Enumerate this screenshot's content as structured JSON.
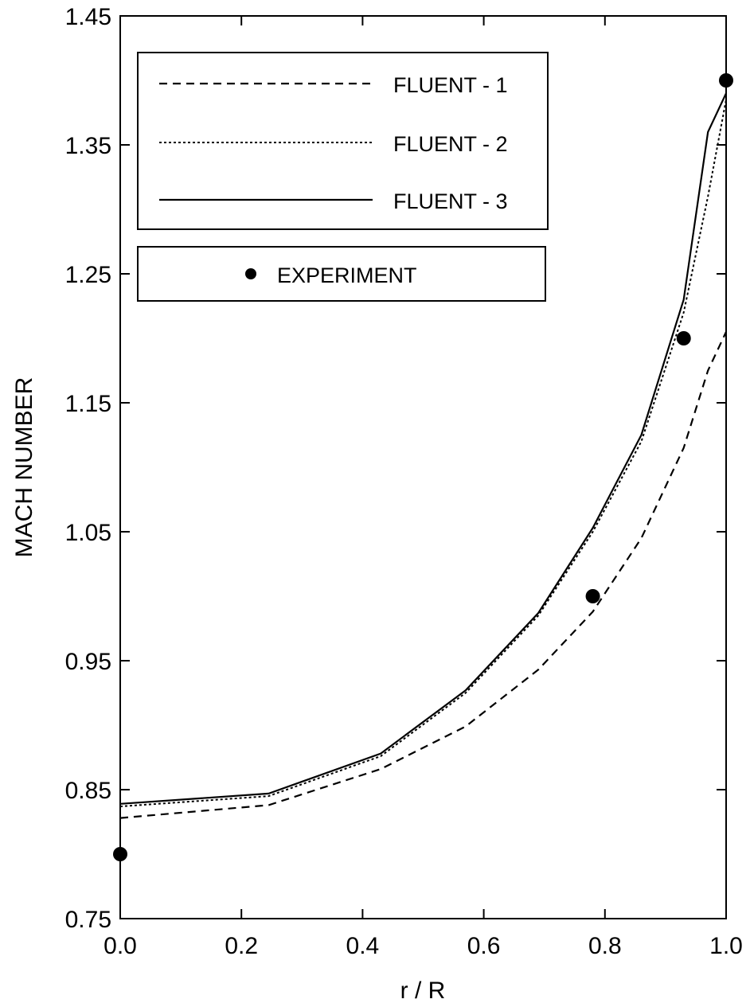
{
  "chart_data": {
    "type": "line",
    "title": "",
    "xlabel": "r / R",
    "ylabel": "MACH NUMBER",
    "xlim": [
      0.0,
      1.0
    ],
    "ylim": [
      0.75,
      1.45
    ],
    "xticks": [
      "0.0",
      "0.2",
      "0.4",
      "0.6",
      "0.8",
      "1.0"
    ],
    "yticks": [
      "0.75",
      "0.85",
      "0.95",
      "1.05",
      "1.15",
      "1.25",
      "1.35",
      "1.45"
    ],
    "grid": false,
    "legend_position": "top-left",
    "series": [
      {
        "name": "FLUENT - 1",
        "style": "dashed",
        "color": "#000000",
        "x": [
          0.0,
          0.245,
          0.43,
          0.57,
          0.69,
          0.78,
          0.86,
          0.93,
          0.97,
          1.0
        ],
        "y": [
          0.828,
          0.838,
          0.866,
          0.899,
          0.943,
          0.988,
          1.045,
          1.115,
          1.175,
          1.205
        ]
      },
      {
        "name": "FLUENT - 2",
        "style": "dotted",
        "color": "#000000",
        "x": [
          0.0,
          0.245,
          0.43,
          0.57,
          0.69,
          0.78,
          0.86,
          0.93,
          0.97,
          1.0
        ],
        "y": [
          0.837,
          0.845,
          0.876,
          0.925,
          0.985,
          1.05,
          1.12,
          1.22,
          1.31,
          1.385
        ]
      },
      {
        "name": "FLUENT - 3",
        "style": "solid",
        "color": "#000000",
        "x": [
          0.0,
          0.245,
          0.43,
          0.57,
          0.69,
          0.78,
          0.86,
          0.93,
          0.97,
          1.0
        ],
        "y": [
          0.839,
          0.847,
          0.878,
          0.927,
          0.987,
          1.053,
          1.125,
          1.23,
          1.36,
          1.39
        ]
      },
      {
        "name": "EXPERIMENT",
        "style": "markers",
        "color": "#000000",
        "x": [
          0.0,
          0.78,
          0.93,
          1.0
        ],
        "y": [
          0.8,
          1.0,
          1.2,
          1.4
        ]
      }
    ]
  }
}
